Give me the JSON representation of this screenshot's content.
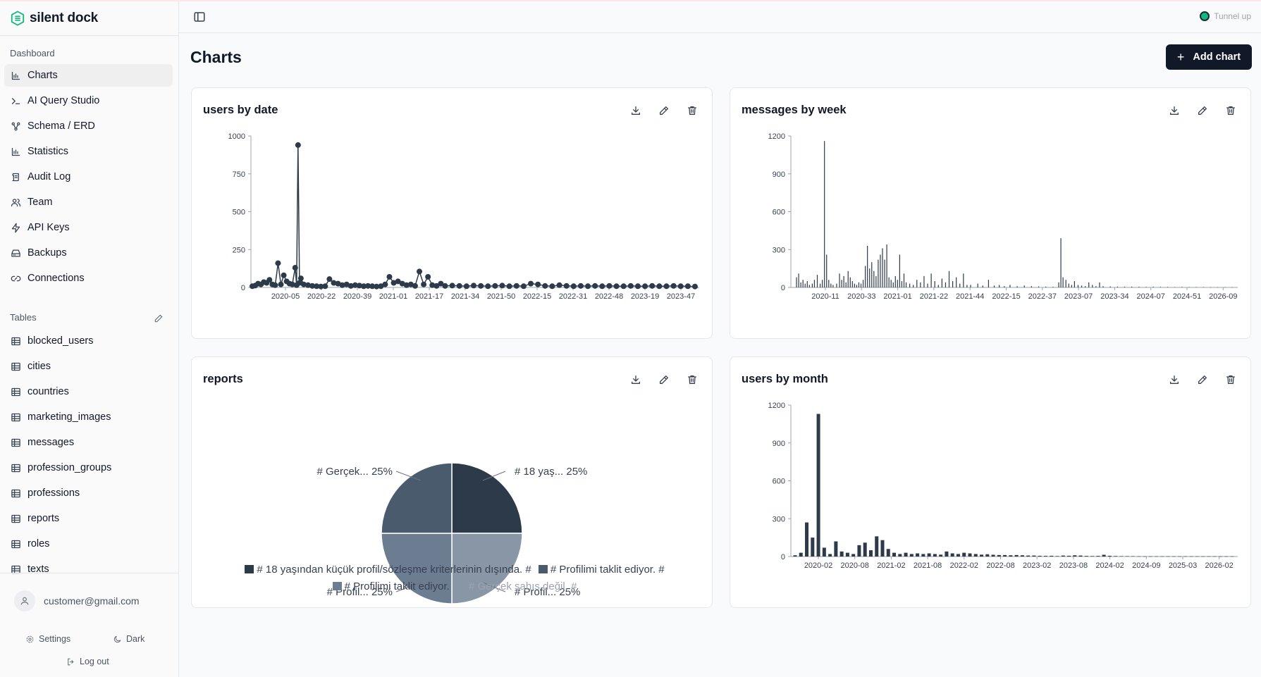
{
  "app": {
    "name": "silent dock"
  },
  "sidebar": {
    "dashboard_label": "Dashboard",
    "nav": [
      {
        "label": "Charts",
        "icon": "bar-chart-icon",
        "active": true
      },
      {
        "label": "AI Query Studio",
        "icon": "terminal-icon"
      },
      {
        "label": "Schema / ERD",
        "icon": "schema-icon"
      },
      {
        "label": "Statistics",
        "icon": "bar-chart-icon"
      },
      {
        "label": "Audit Log",
        "icon": "scroll-icon"
      },
      {
        "label": "Team",
        "icon": "users-icon"
      },
      {
        "label": "API Keys",
        "icon": "zap-icon"
      },
      {
        "label": "Backups",
        "icon": "hard-drive-icon"
      },
      {
        "label": "Connections",
        "icon": "link-icon"
      }
    ],
    "tables_label": "Tables",
    "tables": [
      "blocked_users",
      "cities",
      "countries",
      "marketing_images",
      "messages",
      "profession_groups",
      "professions",
      "reports",
      "roles",
      "texts"
    ],
    "user_email": "customer@gmail.com",
    "settings_label": "Settings",
    "theme_label": "Dark",
    "logout_label": "Log out"
  },
  "header": {
    "tunnel_status": "Tunnel up",
    "tunnel_color": "#10b981"
  },
  "page": {
    "title": "Charts",
    "add_chart_label": "Add chart"
  },
  "colors": {
    "series_dark": "#2d3a4a",
    "accent": "#111827"
  },
  "cards": [
    {
      "title": "users by date"
    },
    {
      "title": "messages by week"
    },
    {
      "title": "reports"
    },
    {
      "title": "users by month"
    }
  ],
  "chart_data": [
    {
      "type": "line",
      "title": "users by date",
      "ylim": [
        0,
        1000
      ],
      "yticks": [
        0,
        250,
        500,
        750,
        1000
      ],
      "xticks": [
        "2020-05",
        "2020-22",
        "2020-39",
        "2021-01",
        "2021-17",
        "2021-34",
        "2021-50",
        "2022-15",
        "2022-31",
        "2022-48",
        "2023-19",
        "2023-47"
      ],
      "points": [
        [
          0,
          8
        ],
        [
          4,
          12
        ],
        [
          8,
          25
        ],
        [
          12,
          20
        ],
        [
          16,
          35
        ],
        [
          20,
          30
        ],
        [
          24,
          50
        ],
        [
          28,
          20
        ],
        [
          32,
          15
        ],
        [
          36,
          160
        ],
        [
          40,
          20
        ],
        [
          44,
          80
        ],
        [
          48,
          40
        ],
        [
          52,
          25
        ],
        [
          56,
          20
        ],
        [
          60,
          130
        ],
        [
          62,
          15
        ],
        [
          64,
          940
        ],
        [
          66,
          30
        ],
        [
          68,
          60
        ],
        [
          72,
          20
        ],
        [
          78,
          15
        ],
        [
          84,
          10
        ],
        [
          90,
          8
        ],
        [
          96,
          6
        ],
        [
          102,
          8
        ],
        [
          108,
          55
        ],
        [
          114,
          30
        ],
        [
          120,
          25
        ],
        [
          126,
          15
        ],
        [
          132,
          20
        ],
        [
          138,
          10
        ],
        [
          144,
          15
        ],
        [
          150,
          12
        ],
        [
          156,
          8
        ],
        [
          162,
          10
        ],
        [
          168,
          8
        ],
        [
          174,
          6
        ],
        [
          180,
          8
        ],
        [
          186,
          20
        ],
        [
          192,
          70
        ],
        [
          198,
          30
        ],
        [
          204,
          40
        ],
        [
          210,
          25
        ],
        [
          216,
          15
        ],
        [
          222,
          20
        ],
        [
          228,
          10
        ],
        [
          234,
          105
        ],
        [
          240,
          20
        ],
        [
          246,
          70
        ],
        [
          252,
          15
        ],
        [
          258,
          10
        ],
        [
          264,
          25
        ],
        [
          270,
          10
        ],
        [
          280,
          12
        ],
        [
          290,
          10
        ],
        [
          300,
          8
        ],
        [
          310,
          12
        ],
        [
          320,
          10
        ],
        [
          330,
          8
        ],
        [
          340,
          10
        ],
        [
          350,
          12
        ],
        [
          360,
          8
        ],
        [
          370,
          10
        ],
        [
          380,
          8
        ],
        [
          390,
          25
        ],
        [
          400,
          20
        ],
        [
          410,
          10
        ],
        [
          420,
          8
        ],
        [
          430,
          15
        ],
        [
          440,
          10
        ],
        [
          450,
          8
        ],
        [
          460,
          10
        ],
        [
          470,
          8
        ],
        [
          480,
          10
        ],
        [
          490,
          8
        ],
        [
          500,
          10
        ],
        [
          510,
          8
        ],
        [
          520,
          8
        ],
        [
          530,
          10
        ],
        [
          540,
          8
        ],
        [
          550,
          8
        ],
        [
          560,
          10
        ],
        [
          570,
          8
        ],
        [
          580,
          8
        ],
        [
          590,
          10
        ],
        [
          600,
          8
        ],
        [
          610,
          8
        ],
        [
          620,
          6
        ]
      ]
    },
    {
      "type": "bar",
      "title": "messages by week",
      "ylim": [
        0,
        1200
      ],
      "yticks": [
        0,
        300,
        600,
        900,
        1200
      ],
      "xticks": [
        "2020-11",
        "2020-33",
        "2021-01",
        "2021-22",
        "2021-44",
        "2022-15",
        "2022-37",
        "2023-07",
        "2023-34",
        "2024-07",
        "2024-51",
        "2026-09"
      ],
      "bars": [
        [
          2,
          80
        ],
        [
          5,
          110
        ],
        [
          8,
          40
        ],
        [
          11,
          60
        ],
        [
          14,
          30
        ],
        [
          17,
          50
        ],
        [
          20,
          20
        ],
        [
          24,
          30
        ],
        [
          27,
          60
        ],
        [
          31,
          100
        ],
        [
          35,
          30
        ],
        [
          38,
          60
        ],
        [
          41,
          1160
        ],
        [
          44,
          260
        ],
        [
          47,
          60
        ],
        [
          50,
          30
        ],
        [
          53,
          20
        ],
        [
          58,
          30
        ],
        [
          62,
          110
        ],
        [
          65,
          60
        ],
        [
          68,
          90
        ],
        [
          71,
          40
        ],
        [
          74,
          130
        ],
        [
          77,
          80
        ],
        [
          80,
          50
        ],
        [
          83,
          30
        ],
        [
          86,
          20
        ],
        [
          89,
          40
        ],
        [
          92,
          30
        ],
        [
          95,
          60
        ],
        [
          98,
          170
        ],
        [
          101,
          330
        ],
        [
          104,
          150
        ],
        [
          107,
          200
        ],
        [
          110,
          130
        ],
        [
          113,
          90
        ],
        [
          116,
          220
        ],
        [
          119,
          260
        ],
        [
          122,
          310
        ],
        [
          125,
          220
        ],
        [
          128,
          340
        ],
        [
          131,
          80
        ],
        [
          134,
          60
        ],
        [
          137,
          40
        ],
        [
          140,
          90
        ],
        [
          143,
          60
        ],
        [
          146,
          260
        ],
        [
          149,
          50
        ],
        [
          152,
          110
        ],
        [
          155,
          40
        ],
        [
          160,
          30
        ],
        [
          165,
          20
        ],
        [
          170,
          60
        ],
        [
          175,
          40
        ],
        [
          180,
          90
        ],
        [
          185,
          30
        ],
        [
          190,
          110
        ],
        [
          195,
          50
        ],
        [
          200,
          20
        ],
        [
          205,
          70
        ],
        [
          210,
          40
        ],
        [
          215,
          130
        ],
        [
          220,
          50
        ],
        [
          225,
          80
        ],
        [
          230,
          30
        ],
        [
          235,
          110
        ],
        [
          240,
          20
        ],
        [
          245,
          20
        ],
        [
          255,
          30
        ],
        [
          262,
          15
        ],
        [
          270,
          60
        ],
        [
          278,
          15
        ],
        [
          285,
          20
        ],
        [
          292,
          10
        ],
        [
          300,
          20
        ],
        [
          310,
          10
        ],
        [
          320,
          15
        ],
        [
          330,
          10
        ],
        [
          340,
          8
        ],
        [
          350,
          6
        ],
        [
          360,
          5
        ],
        [
          368,
          40
        ],
        [
          371,
          390
        ],
        [
          374,
          80
        ],
        [
          378,
          60
        ],
        [
          382,
          30
        ],
        [
          386,
          20
        ],
        [
          390,
          50
        ],
        [
          395,
          20
        ],
        [
          400,
          15
        ],
        [
          405,
          10
        ],
        [
          410,
          40
        ],
        [
          415,
          20
        ],
        [
          420,
          10
        ],
        [
          425,
          40
        ],
        [
          430,
          10
        ],
        [
          440,
          8
        ],
        [
          450,
          6
        ],
        [
          460,
          5
        ],
        [
          470,
          6
        ],
        [
          480,
          5
        ],
        [
          490,
          4
        ],
        [
          500,
          5
        ],
        [
          510,
          4
        ],
        [
          520,
          4
        ],
        [
          530,
          3
        ],
        [
          540,
          4
        ],
        [
          550,
          3
        ],
        [
          560,
          3
        ],
        [
          570,
          3
        ],
        [
          580,
          2
        ],
        [
          590,
          2
        ],
        [
          600,
          2
        ],
        [
          610,
          2
        ]
      ]
    },
    {
      "type": "pie",
      "title": "reports",
      "slices": [
        {
          "label": "# 18 yaş... 25%",
          "legend": "# 18 yaşından küçük profil/sözleşme kriterlerinin dışında. #",
          "value": 25,
          "color": "#2d3a4a"
        },
        {
          "label": "# Profil... 25%",
          "legend": "# Gerçek şahıs değil. #",
          "value": 25,
          "color": "#8996a5"
        },
        {
          "label": "# Profil... 25%",
          "legend": "# Profilimi taklit ediyor.",
          "value": 25,
          "color": "#6c7d91"
        },
        {
          "label": "# Gerçek... 25%",
          "legend": "# Profilimi taklit ediyor. #",
          "value": 25,
          "color": "#4a5b6e"
        }
      ]
    },
    {
      "type": "bar",
      "title": "users by month",
      "ylim": [
        0,
        1200
      ],
      "yticks": [
        0,
        300,
        600,
        900,
        1200
      ],
      "xticks": [
        "2020-02",
        "2020-08",
        "2021-02",
        "2021-08",
        "2022-02",
        "2022-08",
        "2023-02",
        "2023-08",
        "2024-02",
        "2024-09",
        "2025-03",
        "2026-02"
      ],
      "bars": [
        [
          0,
          10
        ],
        [
          1,
          30
        ],
        [
          2,
          270
        ],
        [
          3,
          150
        ],
        [
          4,
          1130
        ],
        [
          5,
          70
        ],
        [
          6,
          20
        ],
        [
          7,
          120
        ],
        [
          8,
          40
        ],
        [
          9,
          30
        ],
        [
          10,
          20
        ],
        [
          11,
          90
        ],
        [
          12,
          110
        ],
        [
          13,
          50
        ],
        [
          14,
          160
        ],
        [
          15,
          130
        ],
        [
          16,
          60
        ],
        [
          17,
          30
        ],
        [
          18,
          20
        ],
        [
          19,
          30
        ],
        [
          20,
          20
        ],
        [
          21,
          25
        ],
        [
          22,
          20
        ],
        [
          23,
          25
        ],
        [
          24,
          20
        ],
        [
          25,
          15
        ],
        [
          26,
          40
        ],
        [
          27,
          25
        ],
        [
          28,
          20
        ],
        [
          29,
          30
        ],
        [
          30,
          25
        ],
        [
          31,
          20
        ],
        [
          32,
          15
        ],
        [
          33,
          18
        ],
        [
          34,
          14
        ],
        [
          35,
          12
        ],
        [
          36,
          12
        ],
        [
          37,
          10
        ],
        [
          38,
          12
        ],
        [
          39,
          10
        ],
        [
          40,
          8
        ],
        [
          41,
          8
        ],
        [
          42,
          6
        ],
        [
          43,
          5
        ],
        [
          44,
          6
        ],
        [
          45,
          4
        ],
        [
          46,
          8
        ],
        [
          47,
          6
        ],
        [
          48,
          10
        ],
        [
          49,
          8
        ],
        [
          50,
          5
        ],
        [
          51,
          4
        ],
        [
          52,
          5
        ],
        [
          53,
          14
        ],
        [
          54,
          6
        ],
        [
          55,
          4
        ],
        [
          56,
          3
        ],
        [
          57,
          3
        ],
        [
          58,
          3
        ],
        [
          59,
          2
        ],
        [
          60,
          2
        ],
        [
          61,
          2
        ],
        [
          62,
          2
        ],
        [
          63,
          2
        ],
        [
          64,
          2
        ],
        [
          65,
          2
        ],
        [
          66,
          2
        ],
        [
          67,
          2
        ],
        [
          68,
          2
        ],
        [
          69,
          2
        ],
        [
          70,
          2
        ],
        [
          71,
          2
        ],
        [
          72,
          2
        ],
        [
          73,
          2
        ],
        [
          74,
          2
        ],
        [
          75,
          2
        ]
      ]
    }
  ]
}
